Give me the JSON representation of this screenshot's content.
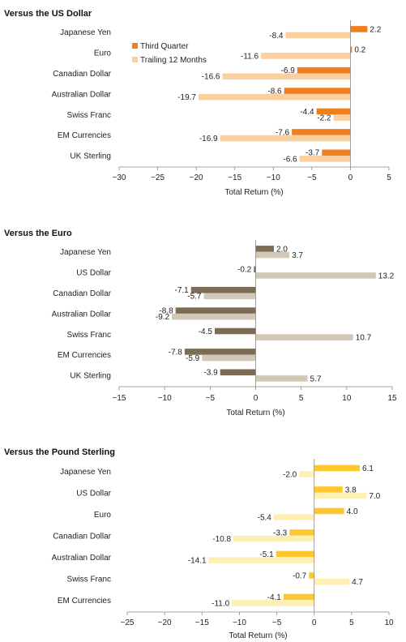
{
  "chart_data": [
    {
      "type": "bar",
      "orientation": "horizontal",
      "title": "Versus the US Dollar",
      "xlabel": "Total Return (%)",
      "xlim": [
        -30,
        5
      ],
      "ticks": [
        -30,
        -25,
        -20,
        -15,
        -10,
        -5,
        0,
        5
      ],
      "categories": [
        "Japanese Yen",
        "Euro",
        "Canadian Dollar",
        "Australian Dollar",
        "Swiss Franc",
        "EM Currencies",
        "UK Sterling"
      ],
      "series": [
        {
          "name": "Third Quarter",
          "color": "#f07f1e",
          "values": [
            2.2,
            0.2,
            -6.9,
            -8.6,
            -4.4,
            -7.6,
            -3.7
          ]
        },
        {
          "name": "Trailing 12 Months",
          "color": "#fbcf9e",
          "values": [
            -8.4,
            -11.6,
            -16.6,
            -19.7,
            -2.2,
            -16.9,
            -6.6
          ]
        }
      ],
      "legend_position": "top-center"
    },
    {
      "type": "bar",
      "orientation": "horizontal",
      "title": "Versus the Euro",
      "xlabel": "Total Return (%)",
      "xlim": [
        -15,
        15
      ],
      "ticks": [
        -15,
        -10,
        -5,
        0,
        5,
        10,
        15
      ],
      "categories": [
        "Japanese Yen",
        "US Dollar",
        "Canadian Dollar",
        "Australian Dollar",
        "Swiss Franc",
        "EM Currencies",
        "UK Sterling"
      ],
      "series": [
        {
          "name": "Third Quarter",
          "color": "#7c6c55",
          "values": [
            2.0,
            -0.2,
            -7.1,
            -8.8,
            -4.5,
            -7.8,
            -3.9
          ]
        },
        {
          "name": "Trailing 12 Months",
          "color": "#d3c7b6",
          "values": [
            3.7,
            13.2,
            -5.7,
            -9.2,
            10.7,
            -5.9,
            5.7
          ]
        }
      ]
    },
    {
      "type": "bar",
      "orientation": "horizontal",
      "title": "Versus the Pound Sterling",
      "xlabel": "Total Return (%)",
      "xlim": [
        -25,
        10
      ],
      "ticks": [
        -25,
        -20,
        -15,
        -10,
        -5,
        0,
        5,
        10
      ],
      "categories": [
        "Japanese Yen",
        "US Dollar",
        "Euro",
        "Canadian Dollar",
        "Australian Dollar",
        "Swiss Franc",
        "EM Currencies"
      ],
      "series": [
        {
          "name": "Third Quarter",
          "color": "#fdc82f",
          "values": [
            6.1,
            3.8,
            4.0,
            -3.3,
            -5.1,
            -0.7,
            -4.1
          ]
        },
        {
          "name": "Trailing 12 Months",
          "color": "#fef0b5",
          "values": [
            -2.0,
            7.0,
            -5.4,
            -10.8,
            -14.1,
            4.7,
            -11.0
          ]
        }
      ]
    }
  ]
}
